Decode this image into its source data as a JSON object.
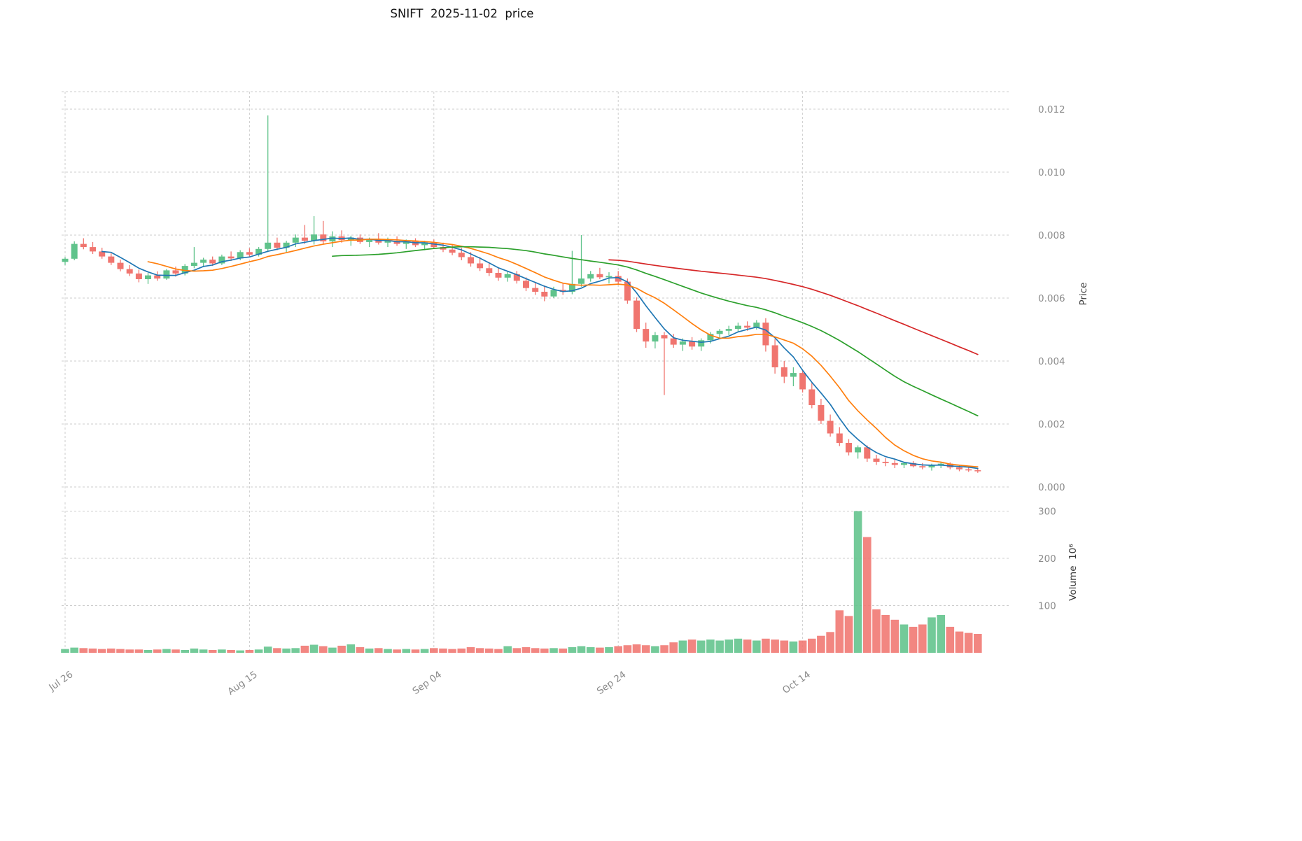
{
  "chart_data": {
    "type": "candlestick",
    "title": "SNIFT  2025-11-02  price",
    "ylabel_price": "Price",
    "ylabel_volume": "Volume  10⁶",
    "legend_position": "none",
    "grid": true,
    "price_axis_side": "right",
    "price_range": [
      0.0,
      0.0125
    ],
    "volume_range": [
      0,
      318
    ],
    "price_ticks": [
      {
        "value": 0.012,
        "label": "0.012"
      },
      {
        "value": 0.01,
        "label": "0.010"
      },
      {
        "value": 0.008,
        "label": "0.008"
      },
      {
        "value": 0.006,
        "label": "0.006"
      },
      {
        "value": 0.004,
        "label": "0.004"
      },
      {
        "value": 0.002,
        "label": "0.002"
      },
      {
        "value": 0.0,
        "label": "0.000"
      }
    ],
    "volume_ticks": [
      {
        "value": 300,
        "label": "300"
      },
      {
        "value": 200,
        "label": "200"
      },
      {
        "value": 100,
        "label": "100"
      }
    ],
    "x_ticks": [
      {
        "index": 0,
        "label": "Jul 26"
      },
      {
        "index": 20,
        "label": "Aug 15"
      },
      {
        "index": 40,
        "label": "Sep 04"
      },
      {
        "index": 60,
        "label": "Sep 24"
      },
      {
        "index": 80,
        "label": "Oct 14"
      }
    ],
    "colors": {
      "up": "#60c38b",
      "down": "#f0756f",
      "grid": "#cdcdcd",
      "tick_text": "#8b8b8b",
      "title_text": "#141414",
      "background": "#ffffff"
    },
    "moving_averages": [
      {
        "window": 5,
        "color": "#1f77b4"
      },
      {
        "window": 10,
        "color": "#ff7f0e"
      },
      {
        "window": 30,
        "color": "#2ca02c"
      },
      {
        "window": 60,
        "color": "#d62728"
      }
    ],
    "ohlc": {
      "open": [
        0.00715,
        0.00725,
        0.00772,
        0.00762,
        0.00748,
        0.00732,
        0.00712,
        0.00692,
        0.00678,
        0.0066,
        0.00672,
        0.00662,
        0.00688,
        0.00678,
        0.00702,
        0.00712,
        0.00722,
        0.0071,
        0.00732,
        0.00726,
        0.00746,
        0.00738,
        0.00756,
        0.00776,
        0.0076,
        0.00776,
        0.00792,
        0.00782,
        0.00802,
        0.0078,
        0.00796,
        0.00784,
        0.00792,
        0.00778,
        0.00786,
        0.00776,
        0.00782,
        0.00772,
        0.0078,
        0.00768,
        0.00776,
        0.00762,
        0.00754,
        0.00744,
        0.0073,
        0.0071,
        0.00695,
        0.0068,
        0.00665,
        0.00676,
        0.00655,
        0.00632,
        0.0062,
        0.00605,
        0.00626,
        0.0062,
        0.00645,
        0.00662,
        0.00676,
        0.00666,
        0.0067,
        0.00652,
        0.00592,
        0.00502,
        0.00462,
        0.00482,
        0.00472,
        0.00452,
        0.00462,
        0.00446,
        0.00466,
        0.00486,
        0.00496,
        0.00502,
        0.00512,
        0.00506,
        0.00522,
        0.0045,
        0.0038,
        0.0035,
        0.00362,
        0.0031,
        0.0026,
        0.0021,
        0.0017,
        0.0014,
        0.0011,
        0.00126,
        0.0009,
        0.0008,
        0.00076,
        0.0007,
        0.00076,
        0.00066,
        0.00062,
        0.0007,
        0.00074,
        0.00062,
        0.00056,
        0.00053
      ],
      "high": [
        0.0073,
        0.0078,
        0.0079,
        0.00778,
        0.0076,
        0.00742,
        0.00722,
        0.00705,
        0.0069,
        0.0068,
        0.00685,
        0.00692,
        0.007,
        0.00708,
        0.00762,
        0.00728,
        0.00732,
        0.00738,
        0.00748,
        0.00752,
        0.00758,
        0.00762,
        0.0118,
        0.00792,
        0.00782,
        0.00802,
        0.00832,
        0.0086,
        0.00845,
        0.00812,
        0.00815,
        0.00798,
        0.00802,
        0.00792,
        0.00806,
        0.00792,
        0.00796,
        0.00786,
        0.0079,
        0.00782,
        0.00786,
        0.00776,
        0.0077,
        0.0076,
        0.00746,
        0.0073,
        0.00712,
        0.00695,
        0.00686,
        0.00686,
        0.00666,
        0.0065,
        0.0064,
        0.00636,
        0.00646,
        0.0075,
        0.008,
        0.00686,
        0.00696,
        0.00682,
        0.00686,
        0.00662,
        0.00602,
        0.00522,
        0.00492,
        0.00492,
        0.00486,
        0.00472,
        0.00476,
        0.00472,
        0.00492,
        0.00502,
        0.00512,
        0.00522,
        0.00526,
        0.0053,
        0.00536,
        0.0047,
        0.004,
        0.0038,
        0.00372,
        0.0033,
        0.0028,
        0.0023,
        0.0019,
        0.00152,
        0.00132,
        0.00132,
        0.00102,
        0.00092,
        0.00086,
        0.0008,
        0.00082,
        0.00076,
        0.00074,
        0.00078,
        0.00078,
        0.00068,
        0.00064,
        0.0006
      ],
      "low": [
        0.00705,
        0.0072,
        0.00755,
        0.0074,
        0.00725,
        0.00705,
        0.00685,
        0.0067,
        0.0065,
        0.00645,
        0.00655,
        0.00658,
        0.00668,
        0.00672,
        0.00695,
        0.00698,
        0.00702,
        0.00705,
        0.00718,
        0.0072,
        0.0073,
        0.00732,
        0.00746,
        0.00752,
        0.00746,
        0.00762,
        0.00772,
        0.0077,
        0.00772,
        0.00762,
        0.00776,
        0.00766,
        0.00772,
        0.00762,
        0.0077,
        0.00762,
        0.00766,
        0.00756,
        0.00762,
        0.00752,
        0.00756,
        0.00746,
        0.00736,
        0.0072,
        0.007,
        0.00686,
        0.0067,
        0.00655,
        0.00652,
        0.00646,
        0.00622,
        0.0061,
        0.0059,
        0.006,
        0.0061,
        0.00612,
        0.00636,
        0.00652,
        0.0066,
        0.00646,
        0.00642,
        0.00582,
        0.00492,
        0.00442,
        0.0044,
        0.00292,
        0.00442,
        0.00432,
        0.00436,
        0.00432,
        0.00456,
        0.00472,
        0.00482,
        0.00492,
        0.00496,
        0.005,
        0.0043,
        0.0036,
        0.0033,
        0.0032,
        0.003,
        0.0025,
        0.002,
        0.0016,
        0.0013,
        0.001,
        0.0009,
        0.0008,
        0.0007,
        0.00066,
        0.0006,
        0.0006,
        0.00062,
        0.00056,
        0.00052,
        0.0006,
        0.00056,
        0.0005,
        0.00048,
        0.00045
      ],
      "close": [
        0.00725,
        0.00772,
        0.00762,
        0.00748,
        0.00732,
        0.00712,
        0.00692,
        0.00678,
        0.0066,
        0.00672,
        0.00662,
        0.00688,
        0.00678,
        0.00702,
        0.00712,
        0.00722,
        0.0071,
        0.00732,
        0.00726,
        0.00746,
        0.00738,
        0.00756,
        0.00776,
        0.0076,
        0.00776,
        0.00792,
        0.00782,
        0.00802,
        0.0078,
        0.00796,
        0.00784,
        0.00792,
        0.00778,
        0.00786,
        0.00776,
        0.00782,
        0.00772,
        0.0078,
        0.00768,
        0.00776,
        0.00762,
        0.00754,
        0.00744,
        0.0073,
        0.0071,
        0.00695,
        0.0068,
        0.00665,
        0.00676,
        0.00655,
        0.00632,
        0.0062,
        0.00605,
        0.00626,
        0.0062,
        0.00645,
        0.00662,
        0.00676,
        0.00666,
        0.0067,
        0.00652,
        0.00592,
        0.00502,
        0.00462,
        0.00482,
        0.00472,
        0.00452,
        0.00462,
        0.00446,
        0.00466,
        0.00486,
        0.00496,
        0.00502,
        0.00512,
        0.00506,
        0.00522,
        0.0045,
        0.0038,
        0.0035,
        0.00362,
        0.0031,
        0.0026,
        0.0021,
        0.0017,
        0.0014,
        0.0011,
        0.00126,
        0.0009,
        0.0008,
        0.00076,
        0.0007,
        0.00076,
        0.00066,
        0.00062,
        0.0007,
        0.00074,
        0.00062,
        0.00056,
        0.00053,
        0.0005
      ]
    },
    "volume_millions": [
      8,
      11,
      10,
      9,
      8,
      9,
      8,
      7,
      7,
      6,
      7,
      8,
      7,
      6,
      9,
      7,
      6,
      7,
      6,
      5,
      6,
      7,
      13,
      10,
      9,
      10,
      15,
      17,
      14,
      11,
      15,
      18,
      12,
      9,
      10,
      8,
      7,
      8,
      7,
      8,
      10,
      9,
      8,
      9,
      12,
      10,
      9,
      8,
      14,
      10,
      12,
      10,
      9,
      10,
      9,
      12,
      14,
      12,
      11,
      12,
      14,
      16,
      18,
      16,
      14,
      16,
      22,
      26,
      28,
      26,
      28,
      26,
      28,
      30,
      28,
      26,
      30,
      28,
      26,
      24,
      26,
      30,
      36,
      44,
      90,
      78,
      300,
      245,
      92,
      80,
      70,
      60,
      55,
      60,
      75,
      80,
      55,
      45,
      42,
      40
    ]
  }
}
